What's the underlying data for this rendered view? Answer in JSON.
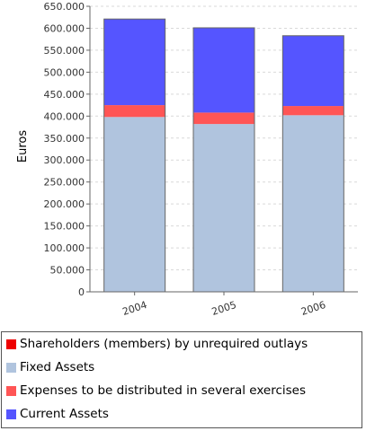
{
  "chart_data": {
    "type": "bar",
    "stacked": true,
    "categories": [
      "2004",
      "2005",
      "2006"
    ],
    "series": [
      {
        "name": "Shareholders (members) by unrequired outlays",
        "color": "#ee0000",
        "values": [
          0,
          0,
          0
        ]
      },
      {
        "name": "Fixed Assets",
        "color": "#b0c4de",
        "values": [
          398000,
          382000,
          402000
        ]
      },
      {
        "name": "Expenses to be distributed in several exercises",
        "color": "#ff5555",
        "values": [
          27000,
          26000,
          21000
        ]
      },
      {
        "name": "Current Assets",
        "color": "#5555ff",
        "values": [
          196000,
          193000,
          160000
        ]
      }
    ],
    "ylabel": "Euros",
    "ylim": [
      0,
      650000
    ],
    "yticks": [
      "0",
      "50.000",
      "100.000",
      "150.000",
      "200.000",
      "250.000",
      "300.000",
      "350.000",
      "400.000",
      "450.000",
      "500.000",
      "550.000",
      "600.000",
      "650.000"
    ],
    "grid": true,
    "legend_position": "bottom"
  }
}
